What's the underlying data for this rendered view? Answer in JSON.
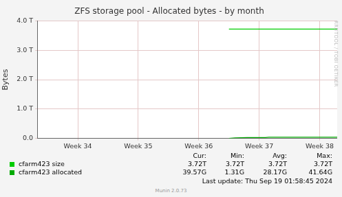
{
  "chart_data": {
    "type": "line",
    "title": "ZFS storage pool - Allocated bytes - by month",
    "y_label": "Bytes",
    "x": [
      36.5,
      36.6,
      36.7,
      36.8,
      36.9,
      37.0,
      37.1,
      37.16,
      37.3,
      37.5,
      37.7,
      37.9,
      38.1,
      38.29
    ],
    "xlim": [
      33.33,
      38.29
    ],
    "xticks": [
      {
        "value": 34,
        "label": "Week 34"
      },
      {
        "value": 35,
        "label": "Week 35"
      },
      {
        "value": 36,
        "label": "Week 36"
      },
      {
        "value": 37,
        "label": "Week 37"
      },
      {
        "value": 38,
        "label": "Week 38"
      }
    ],
    "ylim": [
      0,
      4
    ],
    "yticks": [
      {
        "value": 0,
        "label": "0.0"
      },
      {
        "value": 1,
        "label": "1.0 T"
      },
      {
        "value": 2,
        "label": "2.0 T"
      },
      {
        "value": 3,
        "label": "3.0 T"
      },
      {
        "value": 4,
        "label": "4.0 T"
      }
    ],
    "grid": true,
    "legend": "bottom",
    "series": [
      {
        "name": "cfarm423 size",
        "color": "#00cc00",
        "values": [
          3.72,
          3.72,
          3.72,
          3.72,
          3.72,
          3.72,
          3.72,
          3.72,
          3.72,
          3.72,
          3.72,
          3.72,
          3.72,
          3.72
        ]
      },
      {
        "name": "cfarm423 allocated",
        "color": "#00aa00",
        "values": [
          0.00131,
          0.015,
          0.024,
          0.027,
          0.028,
          0.029,
          0.03,
          0.04,
          0.041,
          0.04164,
          0.041,
          0.0405,
          0.04,
          0.03957
        ]
      }
    ],
    "legend_table": {
      "columns": [
        "Cur:",
        "Min:",
        "Avg:",
        "Max:"
      ],
      "rows": [
        [
          "3.72T",
          "3.72T",
          "3.72T",
          "3.72T"
        ],
        [
          "39.57G",
          "1.31G",
          "28.17G",
          "41.64G"
        ]
      ]
    },
    "footer": "Last update: Thu Sep 19 01:58:45 2024",
    "credit": "Munin 2.0.73",
    "watermark": "RRDTOOL / TOBI OETIKER"
  }
}
